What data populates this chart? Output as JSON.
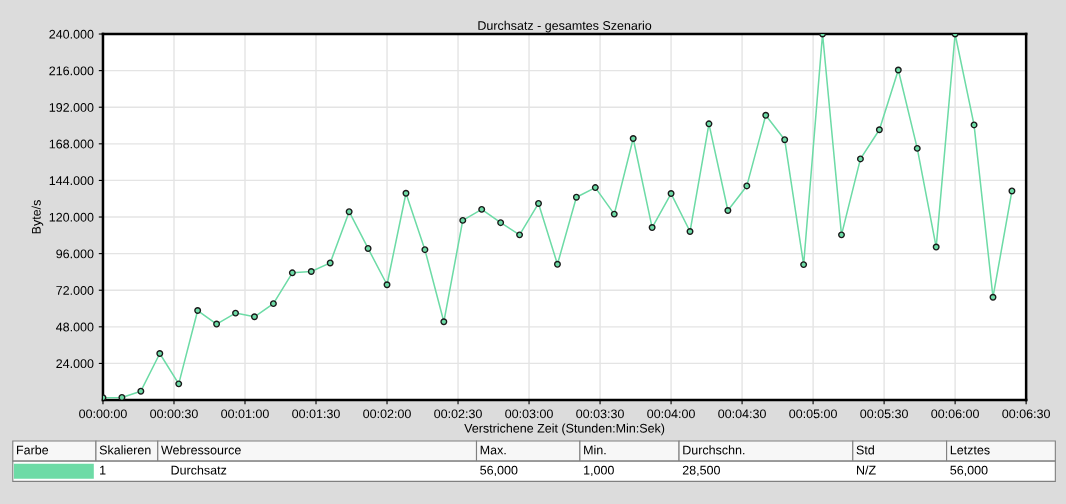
{
  "chart_data": {
    "type": "line",
    "title": "Durchsatz - gesamtes Szenario",
    "xlabel": "Verstrichene Zeit (Stunden:Min:Sek)",
    "ylabel": "Byte/s",
    "x": [
      0,
      8,
      16,
      24,
      32,
      40,
      48,
      56,
      64,
      72,
      80,
      88,
      96,
      104,
      112,
      120,
      128,
      136,
      144,
      152,
      160,
      168,
      176,
      184,
      192,
      200,
      208,
      216,
      224,
      232,
      240,
      248,
      256,
      264,
      272,
      280,
      288,
      296,
      304,
      312,
      320,
      328,
      336,
      344,
      352,
      360,
      368,
      376,
      384
    ],
    "series": [
      {
        "color": "#6ddba6",
        "values": [
          1.5,
          1.7,
          5.8,
          30.5,
          10.6,
          58.7,
          49.8,
          57.0,
          54.6,
          63.2,
          83.4,
          84.3,
          89.9,
          123.5,
          99.4,
          75.6,
          135.6,
          98.6,
          51.3,
          117.8,
          125.0,
          116.3,
          108.3,
          128.9,
          89.0,
          133.0,
          139.3,
          121.9,
          171.5,
          113.1,
          135.4,
          110.5,
          181.1,
          124.3,
          140.4,
          186.7,
          170.7,
          88.8,
          240.0,
          108.3,
          158.1,
          177.2,
          216.4,
          165.0,
          100.3,
          240.0,
          180.4,
          67.4,
          137.1
        ]
      }
    ],
    "xlim": [
      0,
      390
    ],
    "ylim": [
      0,
      240
    ],
    "xticks": [
      {
        "value": 0,
        "label": "00:00:00"
      },
      {
        "value": 30,
        "label": "00:00:30"
      },
      {
        "value": 60,
        "label": "00:01:00"
      },
      {
        "value": 90,
        "label": "00:01:30"
      },
      {
        "value": 120,
        "label": "00:02:00"
      },
      {
        "value": 150,
        "label": "00:02:30"
      },
      {
        "value": 180,
        "label": "00:03:00"
      },
      {
        "value": 210,
        "label": "00:03:30"
      },
      {
        "value": 240,
        "label": "00:04:00"
      },
      {
        "value": 270,
        "label": "00:04:30"
      },
      {
        "value": 300,
        "label": "00:05:00"
      },
      {
        "value": 330,
        "label": "00:05:30"
      },
      {
        "value": 360,
        "label": "00:06:00"
      },
      {
        "value": 390,
        "label": "00:06:30"
      }
    ],
    "yticks": [
      {
        "value": 24,
        "label": "24.000"
      },
      {
        "value": 48,
        "label": "48.000"
      },
      {
        "value": 72,
        "label": "72.000"
      },
      {
        "value": 96,
        "label": "96.000"
      },
      {
        "value": 120,
        "label": "120.000"
      },
      {
        "value": 144,
        "label": "144.000"
      },
      {
        "value": 168,
        "label": "168.000"
      },
      {
        "value": 192,
        "label": "192.000"
      },
      {
        "value": 216,
        "label": "216.000"
      },
      {
        "value": 240,
        "label": "240.000"
      }
    ],
    "grid": true,
    "marker": "circle",
    "line_style": "solid",
    "annotations": [
      "Farbe",
      "Skalieren",
      "Webressource",
      "Max.",
      "Min.",
      "Durchschn.",
      "Std",
      "Letztes",
      "1",
      "Durchsatz",
      "56,000",
      "1,000",
      "28,500",
      "N/Z",
      "56,000"
    ]
  }
}
